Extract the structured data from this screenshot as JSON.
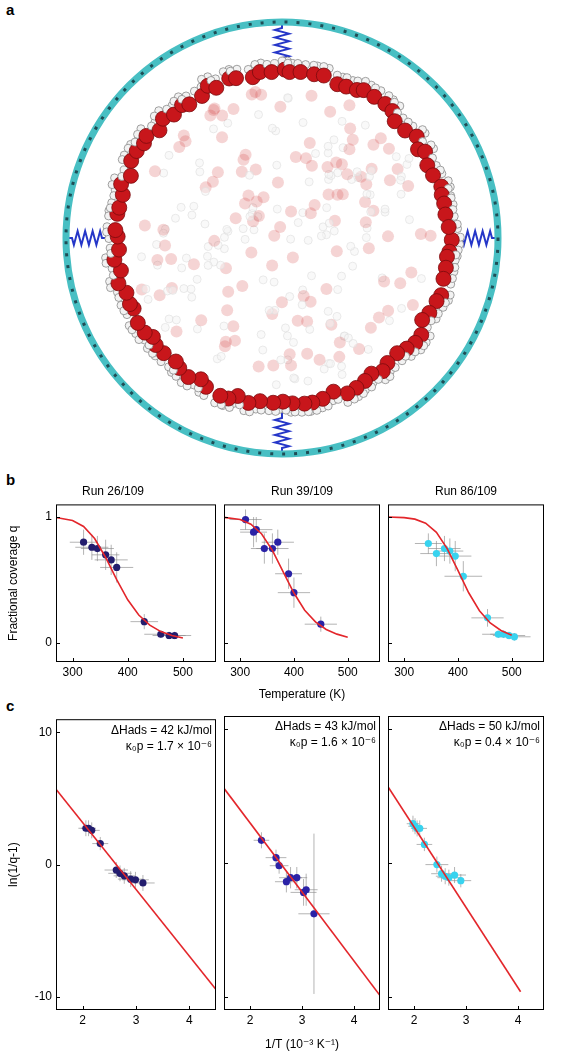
{
  "panel_labels": [
    "a",
    "b",
    "c"
  ],
  "chart_data": [
    {
      "type": "scatter",
      "title": "Run 26/109",
      "ylabel": "Fractional coverage q",
      "xlim": [
        270,
        560
      ],
      "xticks": [
        300,
        400,
        500
      ],
      "ylim": [
        -0.15,
        1.1
      ],
      "yticks": [
        0,
        1
      ],
      "grid": false,
      "series": [
        {
          "type": "scatter",
          "color": "#231d6e",
          "marker": "circle",
          "x": [
            320,
            335,
            345,
            360,
            370,
            380,
            430,
            460,
            475,
            485
          ],
          "values": [
            0.8,
            0.76,
            0.75,
            0.7,
            0.66,
            0.6,
            0.17,
            0.07,
            0.06,
            0.06
          ],
          "xerr": [
            25,
            30,
            30,
            25,
            30,
            30,
            25,
            30,
            30,
            30
          ],
          "yerr": [
            0.1,
            0.1,
            0.1,
            0.12,
            0.12,
            0.12,
            0.06,
            0.03,
            0.03,
            0.03
          ]
        },
        {
          "type": "line",
          "color": "#e3262b",
          "line_style": "solid",
          "x": [
            270,
            300,
            320,
            340,
            360,
            380,
            400,
            420,
            440,
            460,
            480,
            500
          ],
          "values": [
            0.996,
            0.972,
            0.925,
            0.829,
            0.679,
            0.503,
            0.343,
            0.223,
            0.142,
            0.091,
            0.06,
            0.04
          ]
        }
      ]
    },
    {
      "type": "scatter",
      "title": "Run 39/109",
      "xlabel": "Temperature (K)",
      "tick_labels": "x",
      "xlim": [
        270,
        560
      ],
      "xticks": [
        300,
        400,
        500
      ],
      "ylim": [
        -0.15,
        1.1
      ],
      "yticks": [
        0,
        1
      ],
      "grid": false,
      "series": [
        {
          "type": "scatter",
          "color": "#2a22a6",
          "marker": "circle",
          "x": [
            310,
            325,
            330,
            345,
            360,
            370,
            390,
            400,
            450
          ],
          "values": [
            0.98,
            0.88,
            0.9,
            0.75,
            0.75,
            0.8,
            0.55,
            0.4,
            0.15
          ],
          "xerr": [
            30,
            25,
            30,
            25,
            30,
            30,
            25,
            30,
            30
          ],
          "yerr": [
            0.08,
            0.12,
            0.1,
            0.12,
            0.12,
            0.1,
            0.12,
            0.12,
            0.06
          ]
        },
        {
          "type": "line",
          "color": "#e3262b",
          "line_style": "solid",
          "x": [
            270,
            300,
            320,
            340,
            360,
            380,
            400,
            420,
            440,
            460,
            480,
            500
          ],
          "values": [
            0.997,
            0.98,
            0.943,
            0.865,
            0.735,
            0.565,
            0.397,
            0.261,
            0.168,
            0.108,
            0.071,
            0.047
          ]
        }
      ]
    },
    {
      "type": "scatter",
      "title": "Run 86/109",
      "tick_labels": "x",
      "xlim": [
        270,
        560
      ],
      "xticks": [
        300,
        400,
        500
      ],
      "ylim": [
        -0.15,
        1.1
      ],
      "yticks": [
        0,
        1
      ],
      "grid": false,
      "series": [
        {
          "type": "scatter",
          "color": "#38d3ef",
          "marker": "circle",
          "x": [
            345,
            360,
            375,
            385,
            395,
            410,
            455,
            475,
            485,
            495,
            505
          ],
          "values": [
            0.79,
            0.71,
            0.75,
            0.73,
            0.69,
            0.53,
            0.2,
            0.07,
            0.07,
            0.06,
            0.05
          ],
          "xerr": [
            25,
            30,
            30,
            25,
            30,
            35,
            30,
            30,
            25,
            30,
            30
          ],
          "yerr": [
            0.08,
            0.1,
            0.1,
            0.1,
            0.12,
            0.12,
            0.07,
            0.03,
            0.03,
            0.03,
            0.03
          ]
        },
        {
          "type": "line",
          "color": "#e3262b",
          "line_style": "solid",
          "x": [
            270,
            300,
            320,
            340,
            360,
            380,
            400,
            420,
            440,
            460,
            480,
            500
          ],
          "values": [
            1.0,
            0.995,
            0.983,
            0.951,
            0.879,
            0.75,
            0.577,
            0.399,
            0.257,
            0.16,
            0.1,
            0.063
          ]
        }
      ]
    },
    {
      "type": "scatter",
      "ylabel": "ln(1/q-1)",
      "annotations": [
        "ΔHads = 42 kJ/mol",
        "κ₀p = 1.7 × 10⁻⁶"
      ],
      "xlim": [
        1.5,
        4.5
      ],
      "xticks": [
        2,
        3,
        4
      ],
      "ylim": [
        -11,
        11
      ],
      "yticks": [
        -10,
        0,
        10
      ],
      "grid": false,
      "series": [
        {
          "type": "scatter",
          "color": "#231d6e",
          "marker": "circle",
          "x": [
            3.13,
            2.99,
            2.9,
            2.78,
            2.7,
            2.63,
            2.33,
            2.17,
            2.11,
            2.06
          ],
          "values": [
            -1.39,
            -1.15,
            -1.1,
            -0.85,
            -0.66,
            -0.41,
            1.59,
            2.59,
            2.75,
            2.75
          ],
          "xerr": [
            0.22,
            0.25,
            0.24,
            0.2,
            0.22,
            0.22,
            0.15,
            0.15,
            0.14,
            0.14
          ],
          "yerr": [
            0.6,
            0.6,
            0.6,
            0.6,
            0.6,
            0.6,
            0.5,
            0.6,
            0.6,
            0.6
          ]
        },
        {
          "type": "line",
          "color": "#e3262b",
          "line_style": "solid",
          "x": [
            1.5,
            4.5
          ],
          "values": [
            5.7,
            -9.45
          ]
        }
      ]
    },
    {
      "type": "scatter",
      "xlabel": "1/T (10⁻³ K⁻¹)",
      "tick_labels": "x",
      "annotations": [
        "ΔHads = 43 kJ/mol",
        "κ₀p = 1.6 × 10⁻⁶"
      ],
      "xlim": [
        1.5,
        4.5
      ],
      "xticks": [
        2,
        3,
        4
      ],
      "ylim": [
        -11,
        11
      ],
      "yticks": [
        -10,
        0,
        10
      ],
      "grid": false,
      "series": [
        {
          "type": "scatter",
          "color": "#2a22a6",
          "marker": "circle",
          "x": [
            3.23,
            3.08,
            3.03,
            2.9,
            2.78,
            2.7,
            2.56,
            2.5,
            2.22
          ],
          "values": [
            -3.8,
            -2.0,
            -2.2,
            -1.1,
            -1.1,
            -1.4,
            -0.2,
            0.4,
            1.7
          ],
          "xerr": [
            0.3,
            0.22,
            0.25,
            0.2,
            0.22,
            0.22,
            0.18,
            0.2,
            0.15
          ],
          "yerr": [
            6.0,
            1.2,
            1.0,
            0.8,
            0.8,
            0.8,
            0.6,
            0.6,
            0.6
          ]
        },
        {
          "type": "line",
          "color": "#e3262b",
          "line_style": "solid",
          "x": [
            1.5,
            4.5
          ],
          "values": [
            5.59,
            -9.92
          ]
        }
      ]
    },
    {
      "type": "scatter",
      "tick_labels": "x",
      "annotations": [
        "ΔHads = 50 kJ/mol",
        "κ₀p = 0.4 × 10⁻⁶"
      ],
      "xlim": [
        1.5,
        4.5
      ],
      "xticks": [
        2,
        3,
        4
      ],
      "ylim": [
        -11,
        11
      ],
      "yticks": [
        -10,
        0,
        10
      ],
      "grid": false,
      "series": [
        {
          "type": "scatter",
          "color": "#38d3ef",
          "marker": "circle",
          "x": [
            2.9,
            2.78,
            2.67,
            2.6,
            2.53,
            2.44,
            2.2,
            2.11,
            2.06,
            2.02,
            1.98
          ],
          "values": [
            -1.32,
            -0.9,
            -1.1,
            -0.99,
            -0.8,
            -0.12,
            1.39,
            2.59,
            2.59,
            2.75,
            2.94
          ],
          "xerr": [
            0.2,
            0.22,
            0.22,
            0.18,
            0.2,
            0.22,
            0.15,
            0.14,
            0.12,
            0.13,
            0.12
          ],
          "yerr": [
            0.5,
            0.6,
            0.6,
            0.6,
            0.6,
            0.6,
            0.5,
            0.6,
            0.6,
            0.6,
            0.6
          ]
        },
        {
          "type": "line",
          "color": "#e3262b",
          "line_style": "solid",
          "x": [
            1.5,
            4.05
          ],
          "values": [
            5.71,
            -9.63
          ]
        }
      ]
    }
  ]
}
